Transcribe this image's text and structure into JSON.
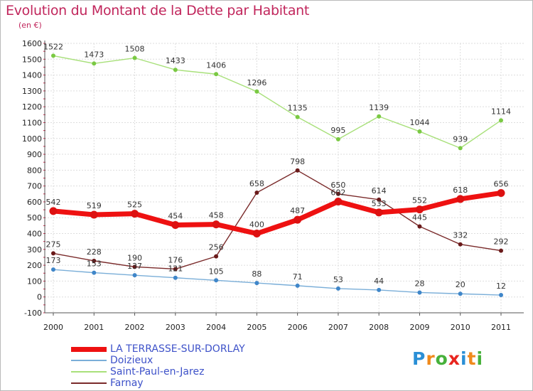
{
  "title": "Evolution du Montant de la Dette par Habitant",
  "subtitle": "(en €)",
  "logo": {
    "text": "Proxiti",
    "colors": [
      "#2a8fd6",
      "#f08a1c",
      "#47b13b",
      "#e8251f",
      "#2a8fd6",
      "#f08a1c",
      "#47b13b"
    ]
  },
  "chart_data": {
    "type": "line",
    "title": "Evolution du Montant de la Dette par Habitant",
    "ylabel": "(en €)",
    "xlabel": "",
    "x": [
      "2000",
      "2001",
      "2002",
      "2003",
      "2004",
      "2005",
      "2006",
      "2007",
      "2008",
      "2009",
      "2010",
      "2011"
    ],
    "ylim": [
      -100,
      1600
    ],
    "yticks": [
      "1600",
      "1500",
      "1400",
      "1300",
      "1200",
      "1100",
      "1000",
      "900",
      "800",
      "700",
      "600",
      "500",
      "400",
      "300",
      "200",
      "100",
      "0",
      "-100"
    ],
    "grid": true,
    "legend_position": "bottom-left",
    "series": [
      {
        "name": "LA TERRASSE-SUR-DORLAY",
        "color": "#ee1111",
        "point_color": "#dd1111",
        "width": 7,
        "values": [
          542,
          519,
          525,
          454,
          458,
          400,
          487,
          602,
          533,
          552,
          618,
          656
        ],
        "labels": [
          "542",
          "519",
          "525",
          "454",
          "458",
          "400",
          "487",
          "602",
          "533",
          "552",
          "618",
          "656"
        ]
      },
      {
        "name": "Doizieux",
        "color": "#7aaed8",
        "point_color": "#3f86c9",
        "width": 1.4,
        "values": [
          173,
          153,
          137,
          121,
          105,
          88,
          71,
          53,
          44,
          28,
          20,
          12
        ],
        "labels": [
          "173",
          "153",
          "137",
          "121",
          "105",
          "88",
          "71",
          "53",
          "44",
          "28",
          "20",
          "12"
        ]
      },
      {
        "name": "Saint-Paul-en-Jarez",
        "color": "#a8e07a",
        "point_color": "#7ac943",
        "width": 1.4,
        "values": [
          1522,
          1473,
          1508,
          1433,
          1406,
          1296,
          1135,
          995,
          1139,
          1044,
          939,
          1114
        ],
        "labels": [
          "1522",
          "1473",
          "1508",
          "1433",
          "1406",
          "1296",
          "1135",
          "995",
          "1139",
          "1044",
          "939",
          "1114"
        ]
      },
      {
        "name": "Farnay",
        "color": "#7a2a2a",
        "point_color": "#6a1a1a",
        "width": 1.4,
        "values": [
          275,
          228,
          190,
          176,
          256,
          658,
          798,
          650,
          614,
          445,
          332,
          292
        ],
        "labels": [
          "275",
          "228",
          "190",
          "176",
          "256",
          "658",
          "798",
          "650",
          "614",
          "445",
          "332",
          "292"
        ]
      }
    ]
  }
}
